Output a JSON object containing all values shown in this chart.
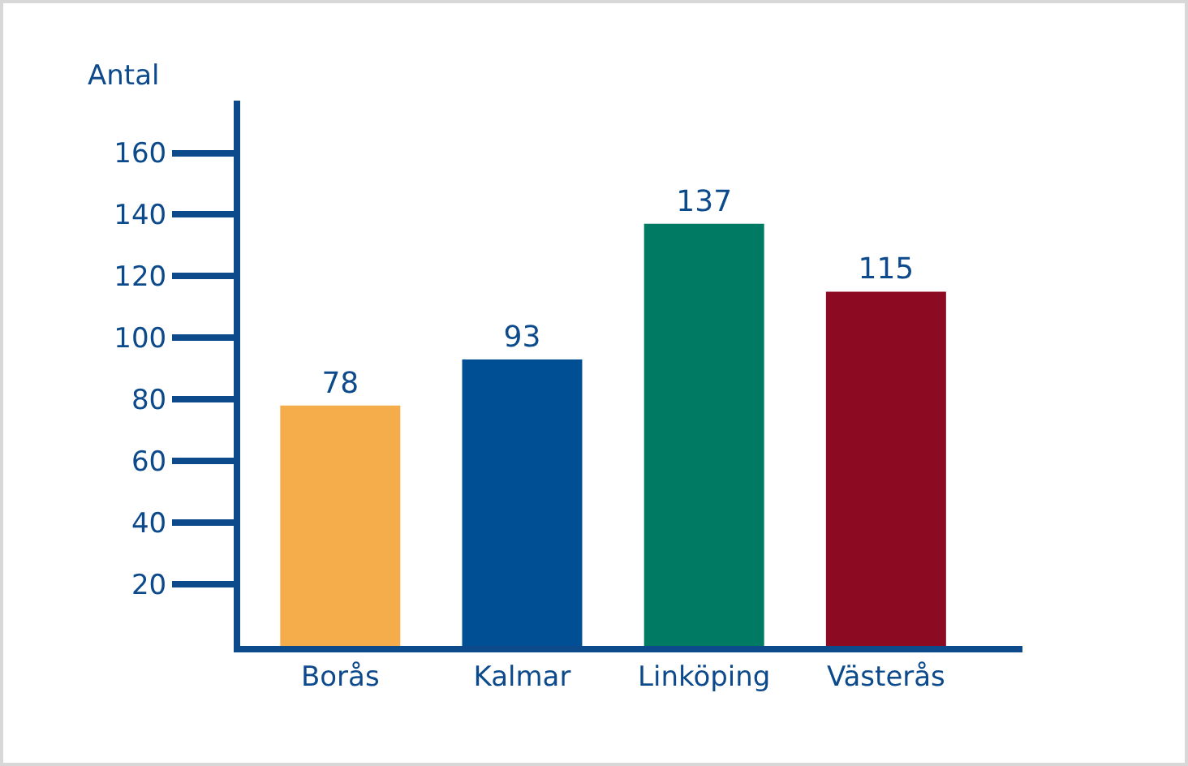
{
  "chart_data": {
    "type": "bar",
    "ylabel": "Antal",
    "categories": [
      "Borås",
      "Kalmar",
      "Linköping",
      "Västerås"
    ],
    "values": [
      78,
      93,
      137,
      115
    ],
    "colors": [
      "#f5ad4b",
      "#004f95",
      "#007a63",
      "#8c0a22"
    ],
    "ylim": [
      0,
      177
    ],
    "yticks": [
      20,
      40,
      60,
      80,
      100,
      120,
      140,
      160
    ],
    "grid": false,
    "legend": false,
    "data_labels": true
  }
}
